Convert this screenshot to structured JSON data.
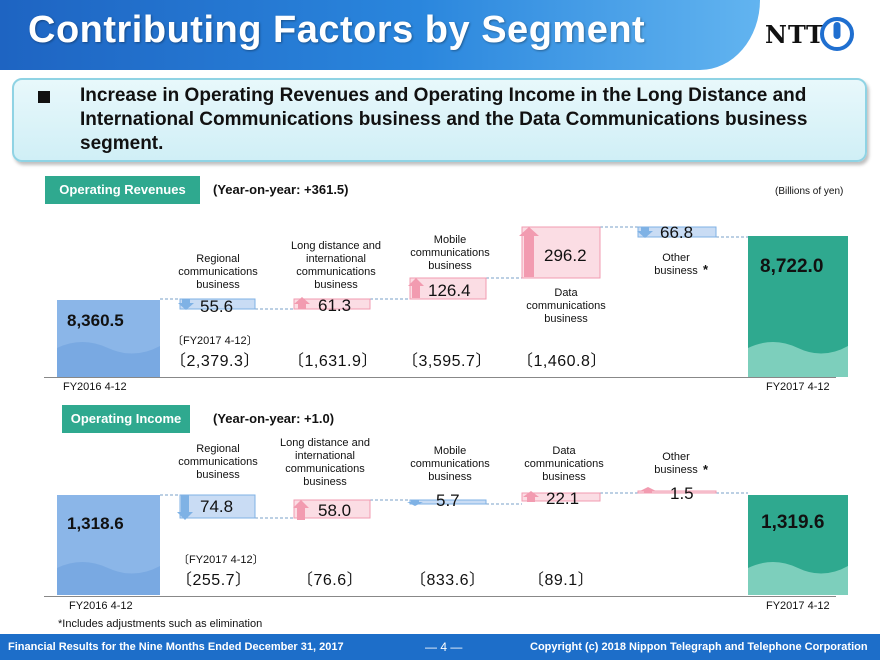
{
  "header": {
    "title": "Contributing Factors by Segment",
    "logo_text": "NTT",
    "colors": {
      "band_start": "#1e64c2",
      "band_end": "#62b4f0",
      "accent_green": "#2fa98f",
      "bar_blue": "#8bb6e8",
      "bar_green": "#2fa98f",
      "up_arrow": "#f29bb0",
      "down_arrow": "#7fb2e5"
    }
  },
  "message": {
    "text": "Increase in Operating Revenues and Operating Income in the Long Distance and International Communications business and the Data Communications business segment."
  },
  "revenues": {
    "label": "Operating Revenues",
    "yoy": "(Year-on-year: +361.5)",
    "unit_note": "(Billions of yen)",
    "start_value": "8,360.5",
    "end_value": "8,722.0",
    "start_period": "FY2016 4-12",
    "end_period": "FY2017 4-12",
    "fy_note": "〔FY2017 4-12〕",
    "segments": [
      {
        "label": "Regional communications business",
        "delta": "55.6",
        "direction": "down",
        "fy_value": "〔2,379.3〕"
      },
      {
        "label": "Long distance and international communications business",
        "delta": "61.3",
        "direction": "up",
        "fy_value": "〔1,631.9〕"
      },
      {
        "label": "Mobile communications business",
        "delta": "126.4",
        "direction": "up",
        "fy_value": "〔3,595.7〕"
      },
      {
        "label": "Data communications business",
        "delta": "296.2",
        "direction": "up",
        "fy_value": "〔1,460.8〕"
      },
      {
        "label": "Other business",
        "delta": "66.8",
        "direction": "down",
        "fy_value": ""
      }
    ]
  },
  "income": {
    "label": "Operating Income",
    "yoy": "(Year-on-year: +1.0)",
    "start_value": "1,318.6",
    "end_value": "1,319.6",
    "start_period": "FY2016 4-12",
    "end_period": "FY2017 4-12",
    "fy_note": "〔FY2017 4-12〕",
    "segments": [
      {
        "label": "Regional communications business",
        "delta": "74.8",
        "direction": "down",
        "fy_value": "〔255.7〕"
      },
      {
        "label": "Long distance and international communications business",
        "delta": "58.0",
        "direction": "up",
        "fy_value": "〔76.6〕"
      },
      {
        "label": "Mobile communications business",
        "delta": "5.7",
        "direction": "down",
        "fy_value": "〔833.6〕"
      },
      {
        "label": "Data communications business",
        "delta": "22.1",
        "direction": "up",
        "fy_value": "〔89.1〕"
      },
      {
        "label": "Other business",
        "delta": "1.5",
        "direction": "up",
        "fy_value": ""
      }
    ]
  },
  "other_asterisk": "*",
  "footnote": "*Includes adjustments such as elimination",
  "footer": {
    "left": "Financial Results for the Nine Months Ended December 31, 2017",
    "page": "― 4 ―",
    "right": "Copyright (c) 2018  Nippon Telegraph and Telephone Corporation"
  }
}
